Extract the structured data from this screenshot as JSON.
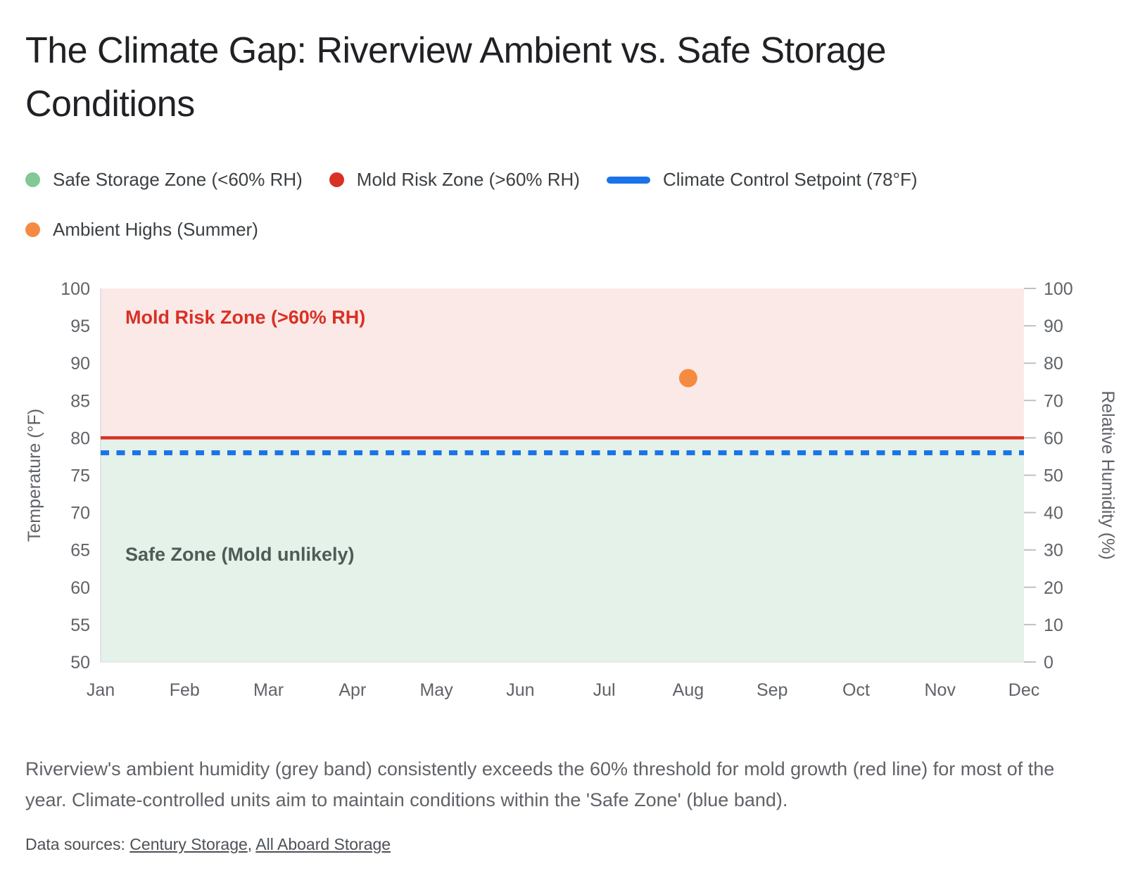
{
  "title": "The Climate Gap: Riverview Ambient vs. Safe Storage Conditions",
  "legend": {
    "items": [
      {
        "label": "Safe Storage Zone (<60% RH)",
        "swatch": "dot",
        "color": "#81C995"
      },
      {
        "label": "Mold Risk Zone (>60% RH)",
        "swatch": "dot",
        "color": "#D93025"
      },
      {
        "label": "Climate Control Setpoint (78°F)",
        "swatch": "line",
        "color": "#1A73E8"
      },
      {
        "label": "Ambient Highs (Summer)",
        "swatch": "dot",
        "color": "#F58B40"
      }
    ]
  },
  "chart_data": {
    "type": "combo-zones-threshold-scatter",
    "x_categories": [
      "Jan",
      "Feb",
      "Mar",
      "Apr",
      "May",
      "Jun",
      "Jul",
      "Aug",
      "Sep",
      "Oct",
      "Nov",
      "Dec"
    ],
    "left_axis": {
      "label": "Temperature (°F)",
      "min": 50,
      "max": 100,
      "ticks": [
        100,
        95,
        90,
        85,
        80,
        75,
        70,
        65,
        60,
        55,
        50
      ]
    },
    "right_axis": {
      "label": "Relative Humidity (%)",
      "min": 0,
      "max": 100,
      "ticks": [
        100,
        90,
        80,
        70,
        60,
        50,
        40,
        30,
        20,
        10,
        0
      ]
    },
    "zones": [
      {
        "id": "mold-risk-zone",
        "label": "Mold Risk Zone (>60% RH)",
        "temp_from": 80,
        "temp_to": 100,
        "fill": "#FBE9E7",
        "label_color": "#D93025"
      },
      {
        "id": "safe-zone",
        "label": "Safe Zone (Mold unlikely)",
        "temp_from": 50,
        "temp_to": 80,
        "fill": "#E4F2E9",
        "label_color": "#4E5B57"
      }
    ],
    "threshold_lines": [
      {
        "id": "mold-threshold",
        "name": "Mold Risk threshold (>60% RH)",
        "tempF": 80,
        "rh_percent": 60,
        "style": "solid",
        "color": "#D93025"
      },
      {
        "id": "climate-setpoint",
        "name": "Climate Control Setpoint (78°F)",
        "tempF": 78,
        "style": "dashed",
        "color": "#1A73E8"
      }
    ],
    "points": [
      {
        "series": "Ambient Highs (Summer)",
        "month": "Aug",
        "tempF": 88,
        "color": "#F58B40"
      }
    ],
    "grid": false,
    "legend_position": "top"
  },
  "caption": "Riverview's ambient humidity (grey band) consistently exceeds the 60% threshold for mold growth (red line) for most of the year. Climate-controlled units aim to maintain conditions within the 'Safe Zone' (blue band).",
  "sources": {
    "prefix": "Data sources:",
    "separator": ", ",
    "links": [
      {
        "label": "Century Storage"
      },
      {
        "label": "All Aboard Storage"
      }
    ]
  }
}
